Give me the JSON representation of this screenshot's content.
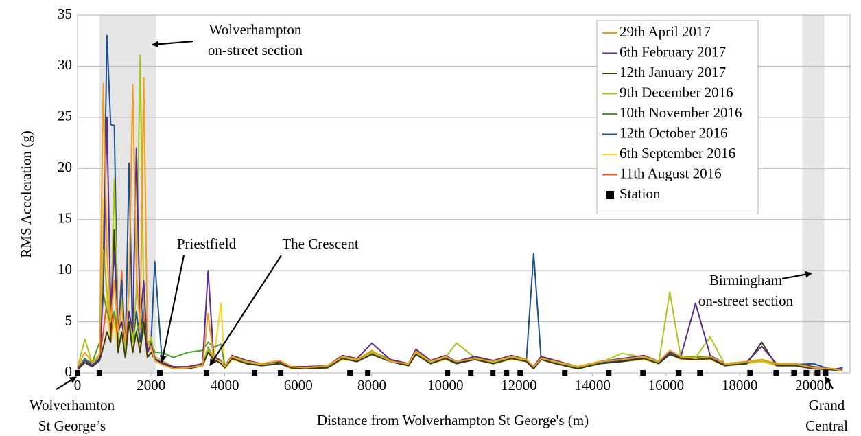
{
  "chart_data": {
    "type": "line",
    "x_label": "Distance from Wolverhampton St George's (m)",
    "y_label": "RMS Acceleration (g)",
    "xlim": [
      0,
      21000
    ],
    "ylim": [
      0,
      35
    ],
    "xticks": [
      0,
      2000,
      4000,
      6000,
      8000,
      10000,
      12000,
      14000,
      16000,
      18000,
      20000
    ],
    "yticks": [
      0,
      5,
      10,
      15,
      20,
      25,
      30,
      35
    ],
    "grid": true,
    "legend": "upper right",
    "highlight_ranges": [
      [
        597,
        2127
      ],
      [
        19700,
        20300
      ]
    ],
    "highlight_color": "#e6e6e6",
    "x": [
      0,
      200,
      400,
      600,
      700,
      800,
      900,
      1000,
      1100,
      1200,
      1300,
      1400,
      1500,
      1600,
      1700,
      1800,
      1900,
      2000,
      2100,
      2300,
      2600,
      3000,
      3400,
      3550,
      3700,
      3900,
      4000,
      4200,
      4600,
      5000,
      5500,
      5800,
      6200,
      6800,
      7200,
      7600,
      8000,
      8500,
      9000,
      9200,
      9600,
      10000,
      10300,
      10800,
      11300,
      11800,
      12200,
      12400,
      12600,
      13000,
      13600,
      14200,
      14800,
      15400,
      15800,
      16100,
      16400,
      16800,
      17200,
      17600,
      18200,
      18600,
      19000,
      19500,
      20000,
      20500,
      20800
    ],
    "series": [
      {
        "name": "29th April 2017",
        "color": "#f39c1f",
        "values": [
          0.6,
          2,
          1,
          1.8,
          28.3,
          12,
          5,
          9,
          4,
          6.5,
          3,
          8,
          28.2,
          10,
          4,
          28.9,
          3,
          2.5,
          1.2,
          0.8,
          0.4,
          0.5,
          0.7,
          5.8,
          1.4,
          1.1,
          0.6,
          1.6,
          1.1,
          0.9,
          1.2,
          0.6,
          0.5,
          0.7,
          1.6,
          1.3,
          2.2,
          1.1,
          0.9,
          2.1,
          1.1,
          1.6,
          1.1,
          1.4,
          1.1,
          1.6,
          1.3,
          0.6,
          1.4,
          1.1,
          0.6,
          1.1,
          1.3,
          1.6,
          1.1,
          2.2,
          1.6,
          1.4,
          1.6,
          0.9,
          1.1,
          1.3,
          0.9,
          0.9,
          0.5,
          0.4,
          0.2
        ]
      },
      {
        "name": "6th February 2017",
        "color": "#5b2c8f",
        "values": [
          0.4,
          1.2,
          0.7,
          1.3,
          8,
          25,
          6,
          12,
          4,
          5,
          3,
          6,
          4,
          22,
          5,
          9,
          2,
          2.8,
          1.4,
          1,
          0.6,
          0.6,
          0.9,
          10,
          1.6,
          1.2,
          0.6,
          1.7,
          1.2,
          0.9,
          1.1,
          0.6,
          0.6,
          0.7,
          1.7,
          1.4,
          2.9,
          1.3,
          0.9,
          2.3,
          1.2,
          1.7,
          1.1,
          1.6,
          1.2,
          1.7,
          1.3,
          0.6,
          1.6,
          1.2,
          0.6,
          1.1,
          1.4,
          1.7,
          1.1,
          2.1,
          1.6,
          6.8,
          1.7,
          0.9,
          1.1,
          2.6,
          0.9,
          0.9,
          0.6,
          0.4,
          0.3
        ]
      },
      {
        "name": "12th January 2017",
        "color": "#3b3b0b",
        "values": [
          0.3,
          1,
          0.6,
          1.2,
          2.5,
          4,
          3,
          14,
          2,
          4,
          1.5,
          5,
          2,
          4,
          2,
          5,
          1.5,
          2,
          1.3,
          0.9,
          0.5,
          0.4,
          0.7,
          2,
          1.3,
          0.9,
          0.5,
          1.4,
          0.9,
          0.7,
          0.9,
          0.5,
          0.4,
          0.5,
          1.4,
          1.1,
          1.8,
          1.1,
          0.7,
          1.8,
          0.9,
          1.4,
          0.9,
          1.3,
          0.9,
          1.4,
          1.1,
          0.4,
          1.3,
          0.9,
          0.4,
          0.9,
          1.1,
          1.4,
          0.9,
          1.8,
          1.4,
          1.3,
          1.4,
          0.7,
          0.9,
          3,
          0.7,
          0.7,
          0.4,
          0.3,
          0.2
        ]
      },
      {
        "name": "9th December 2016",
        "color": "#a6c81e",
        "values": [
          0.5,
          3.3,
          0.9,
          1.6,
          12,
          8,
          5,
          19,
          3,
          7,
          2,
          6,
          3,
          8,
          31.1,
          7,
          2,
          3.5,
          1.6,
          1.2,
          0.6,
          0.6,
          0.8,
          2.4,
          1.5,
          1,
          0.5,
          1.5,
          1,
          0.8,
          1,
          0.5,
          0.5,
          0.6,
          1.5,
          1.2,
          2,
          1.2,
          0.8,
          2,
          1,
          1.5,
          2.9,
          1.5,
          1,
          1.5,
          1.2,
          0.5,
          1.5,
          1,
          0.5,
          1,
          1.9,
          1.5,
          1,
          7.9,
          1.5,
          1.5,
          3.5,
          0.8,
          1,
          1.2,
          0.8,
          0.8,
          0.5,
          0.3,
          0.2
        ]
      },
      {
        "name": "10th November 2016",
        "color": "#4aa02c",
        "values": [
          0.6,
          1.3,
          1,
          3,
          7.8,
          6,
          5,
          6,
          4,
          5,
          3,
          5,
          3,
          4,
          5,
          4,
          3,
          3.2,
          2,
          2,
          1.5,
          2,
          2.2,
          3,
          2.5,
          2.8,
          0.7,
          1.6,
          1.1,
          0.9,
          1.1,
          0.6,
          0.6,
          0.7,
          1.6,
          1.3,
          2.1,
          1.3,
          0.9,
          2.1,
          1.1,
          1.6,
          1.1,
          1.6,
          1.1,
          1.6,
          1.3,
          0.6,
          1.6,
          1.1,
          0.6,
          1.1,
          1.3,
          1.6,
          1.1,
          2.1,
          1.6,
          1.6,
          1.6,
          0.9,
          1.1,
          1.3,
          0.9,
          0.9,
          0.6,
          0.4,
          0.3
        ]
      },
      {
        "name": "12th October 2016",
        "color": "#1d4f91",
        "values": [
          0.5,
          1.4,
          0.8,
          1.5,
          10,
          33,
          24.3,
          24.2,
          3,
          9,
          2,
          20.5,
          3,
          6,
          3,
          7,
          2,
          3,
          10.9,
          1,
          0.5,
          0.5,
          0.8,
          2.5,
          1.5,
          1,
          0.5,
          1.5,
          1,
          0.8,
          1,
          0.5,
          0.5,
          0.6,
          1.5,
          1.2,
          2,
          1.2,
          0.8,
          2,
          1,
          1.5,
          1,
          1.5,
          1,
          1.5,
          1.2,
          11.7,
          1.5,
          1,
          0.5,
          1,
          1.2,
          1.5,
          1,
          2,
          1.5,
          1.5,
          1.5,
          0.8,
          1,
          1.2,
          0.8,
          0.8,
          0.9,
          0.3,
          0.5
        ]
      },
      {
        "name": "6th September 2016",
        "color": "#ffd320",
        "values": [
          0.4,
          1.2,
          0.7,
          1.3,
          17,
          6,
          3,
          5,
          2,
          4,
          2,
          5,
          2,
          6,
          2,
          5,
          1.5,
          3.4,
          1.3,
          0.9,
          0.4,
          0.4,
          0.7,
          2,
          1.3,
          6.8,
          0.4,
          1.3,
          0.9,
          0.7,
          0.9,
          0.4,
          0.4,
          0.5,
          1.3,
          1.1,
          1.8,
          1.1,
          0.7,
          1.8,
          0.9,
          1.3,
          0.9,
          1.3,
          0.9,
          1.3,
          1.1,
          0.4,
          1.3,
          0.9,
          0.4,
          0.9,
          1.1,
          1.3,
          0.9,
          1.8,
          1.3,
          1.3,
          1.3,
          0.7,
          0.9,
          1.1,
          0.7,
          0.7,
          0.4,
          0.3,
          0.2
        ]
      },
      {
        "name": "11th August 2016",
        "color": "#f2561d",
        "values": [
          0.5,
          1.3,
          0.8,
          1.4,
          4,
          7,
          3,
          6,
          3,
          10,
          2,
          5,
          3,
          6,
          2,
          6,
          2,
          2.5,
          1.3,
          0.9,
          0.5,
          0.5,
          0.8,
          2.3,
          1.4,
          1,
          0.5,
          1.4,
          1,
          0.8,
          1,
          0.5,
          0.5,
          0.6,
          1.4,
          1.1,
          1.9,
          1.1,
          0.8,
          1.9,
          1,
          1.4,
          1,
          1.4,
          1,
          1.4,
          1.1,
          0.5,
          1.4,
          1,
          0.5,
          1,
          1.1,
          1.4,
          1,
          1.9,
          1.4,
          1.4,
          1.4,
          0.8,
          1,
          1.1,
          0.8,
          0.8,
          0.5,
          0.3,
          0.2
        ]
      }
    ],
    "stations": {
      "name": "Station",
      "color": "#000000",
      "y": 0,
      "x": [
        0,
        597,
        2239,
        3507,
        4813,
        5522,
        7407,
        7892,
        10056,
        10690,
        11287,
        11660,
        12034,
        13246,
        14440,
        15373,
        16343,
        16922,
        18284,
        18993,
        19478,
        19813,
        20112,
        20336
      ]
    },
    "annotations": [
      {
        "lines": [
          "Wolverhampton",
          "on-street section"
        ]
      },
      {
        "lines": [
          "Priestfield"
        ]
      },
      {
        "lines": [
          "The Crescent"
        ]
      },
      {
        "lines": [
          "Birmingham",
          "on-street section"
        ]
      },
      {
        "lines": [
          "Wolverhamton",
          "St George’s"
        ]
      },
      {
        "lines": [
          "Grand",
          "Central"
        ]
      }
    ]
  }
}
